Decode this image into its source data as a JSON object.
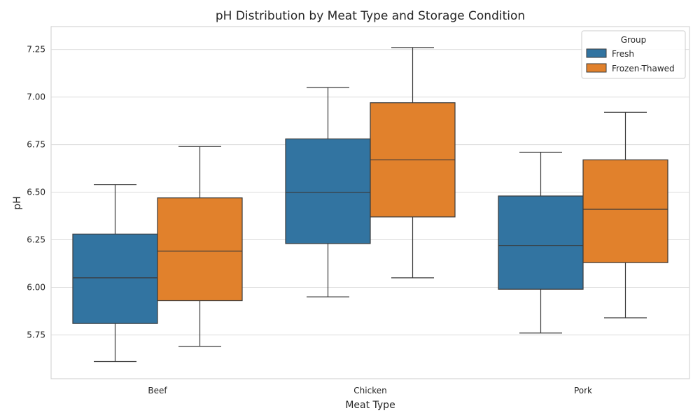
{
  "chart_data": {
    "type": "box",
    "title": "pH Distribution by Meat Type and Storage Condition",
    "xlabel": "Meat Type",
    "ylabel": "pH",
    "categories": [
      "Beef",
      "Chicken",
      "Pork"
    ],
    "ylim": [
      5.52,
      7.37
    ],
    "yticks": [
      5.75,
      6.0,
      6.25,
      6.5,
      6.75,
      7.0,
      7.25
    ],
    "grid": true,
    "legend": {
      "title": "Group",
      "placement": "top-right"
    },
    "series": [
      {
        "name": "Fresh",
        "color": "#3274a1",
        "boxes": [
          {
            "whisker_low": 5.61,
            "q1": 5.81,
            "median": 6.05,
            "q3": 6.28,
            "whisker_high": 6.54
          },
          {
            "whisker_low": 5.95,
            "q1": 6.23,
            "median": 6.5,
            "q3": 6.78,
            "whisker_high": 7.05
          },
          {
            "whisker_low": 5.76,
            "q1": 5.99,
            "median": 6.22,
            "q3": 6.48,
            "whisker_high": 6.71
          }
        ]
      },
      {
        "name": "Frozen-Thawed",
        "color": "#e1812c",
        "boxes": [
          {
            "whisker_low": 5.69,
            "q1": 5.93,
            "median": 6.19,
            "q3": 6.47,
            "whisker_high": 6.74
          },
          {
            "whisker_low": 6.05,
            "q1": 6.37,
            "median": 6.67,
            "q3": 6.97,
            "whisker_high": 7.26
          },
          {
            "whisker_low": 5.84,
            "q1": 6.13,
            "median": 6.41,
            "q3": 6.67,
            "whisker_high": 6.92
          }
        ]
      }
    ]
  }
}
